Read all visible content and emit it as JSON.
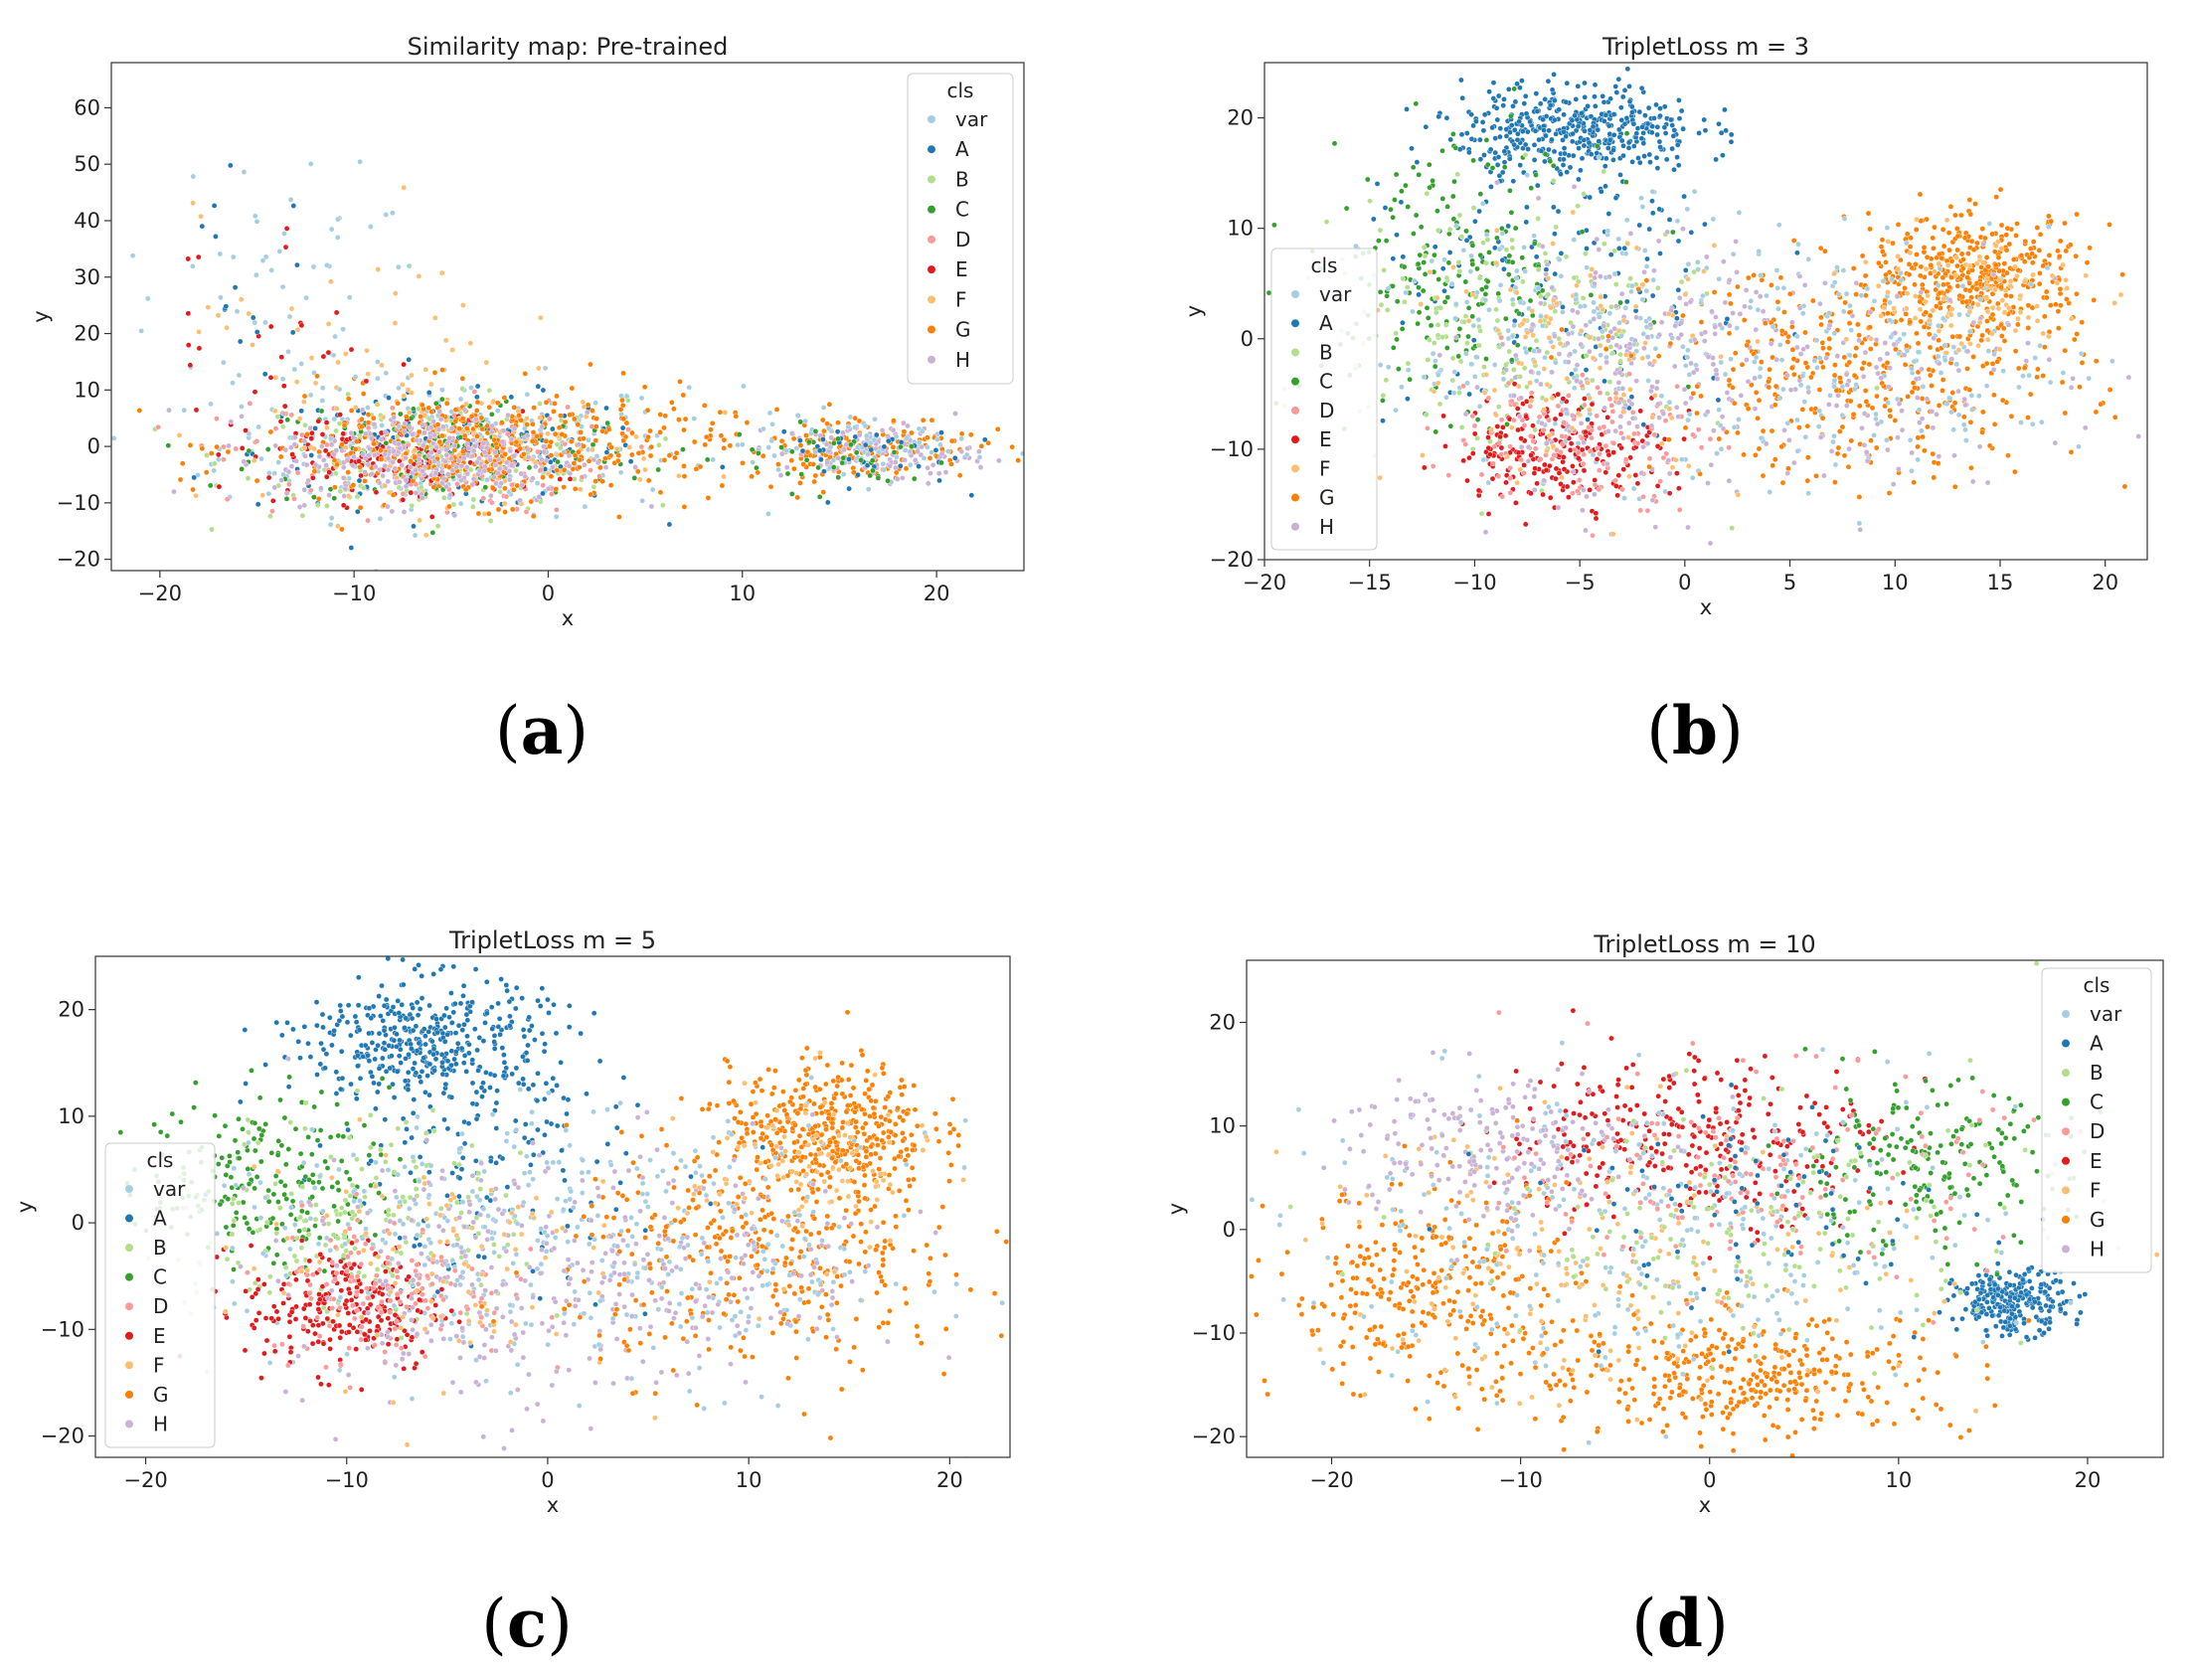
{
  "figure": {
    "captions": [
      "a",
      "b",
      "c",
      "d"
    ]
  },
  "class_colors": {
    "var": "#a6cee3",
    "A": "#1f78b4",
    "B": "#b2df8a",
    "C": "#33a02c",
    "D": "#fb9a99",
    "E": "#e31a1c",
    "F": "#fdbf6f",
    "G": "#ff7f00",
    "H": "#cab2d6"
  },
  "chart_data": [
    {
      "type": "scatter",
      "title": "Similarity map: Pre-trained",
      "xlabel": "x",
      "ylabel": "y",
      "xlim": [
        -22.5,
        24.5
      ],
      "ylim": [
        -22,
        68
      ],
      "xticks": [
        -20,
        -10,
        0,
        10,
        20
      ],
      "yticks": [
        -20,
        -10,
        0,
        10,
        20,
        30,
        40,
        50,
        60
      ],
      "xtick_labels": [
        "−20",
        "−10",
        "0",
        "10",
        "20"
      ],
      "ytick_labels": [
        "−20",
        "−10",
        "0",
        "10",
        "20",
        "30",
        "40",
        "50",
        "60"
      ],
      "legend": {
        "title": "cls",
        "placement": "upper-right",
        "entries": [
          "var",
          "A",
          "B",
          "C",
          "D",
          "E",
          "F",
          "G",
          "H"
        ]
      },
      "clusters": [
        {
          "cls": "var",
          "cx": -5,
          "cy": 0,
          "sx": 6,
          "sy": 6,
          "n": 260
        },
        {
          "cls": "A",
          "cx": -5,
          "cy": -1,
          "sx": 5,
          "sy": 5,
          "n": 160
        },
        {
          "cls": "B",
          "cx": -6,
          "cy": -2,
          "sx": 5,
          "sy": 5,
          "n": 160
        },
        {
          "cls": "C",
          "cx": -5,
          "cy": -1,
          "sx": 5,
          "sy": 5,
          "n": 130
        },
        {
          "cls": "D",
          "cx": -7,
          "cy": -2,
          "sx": 5,
          "sy": 5,
          "n": 140
        },
        {
          "cls": "E",
          "cx": -8,
          "cy": -2,
          "sx": 4,
          "sy": 4,
          "n": 120
        },
        {
          "cls": "F",
          "cx": -4,
          "cy": 0,
          "sx": 5,
          "sy": 5,
          "n": 150
        },
        {
          "cls": "G",
          "cx": -3,
          "cy": 0,
          "sx": 6,
          "sy": 5,
          "n": 420
        },
        {
          "cls": "H",
          "cx": -6,
          "cy": -2,
          "sx": 4,
          "sy": 4,
          "n": 280
        },
        {
          "cls": "G",
          "cx": 16,
          "cy": 0,
          "sx": 3,
          "sy": 3,
          "n": 160
        },
        {
          "cls": "H",
          "cx": 17,
          "cy": -1,
          "sx": 2.5,
          "sy": 2.5,
          "n": 120
        },
        {
          "cls": "var",
          "cx": 16,
          "cy": 0,
          "sx": 3,
          "sy": 3,
          "n": 80
        },
        {
          "cls": "A",
          "cx": 15,
          "cy": -1,
          "sx": 3,
          "sy": 3,
          "n": 40
        },
        {
          "cls": "C",
          "cx": 15,
          "cy": -2,
          "sx": 3,
          "sy": 3,
          "n": 40
        },
        {
          "cls": "var",
          "cx": -14,
          "cy": 25,
          "sx": 4,
          "sy": 13,
          "n": 60
        },
        {
          "cls": "F",
          "cx": -10,
          "cy": 22,
          "sx": 4,
          "sy": 10,
          "n": 40
        },
        {
          "cls": "E",
          "cx": -14,
          "cy": 20,
          "sx": 3,
          "sy": 12,
          "n": 25
        },
        {
          "cls": "A",
          "cx": -16,
          "cy": 28,
          "sx": 2,
          "sy": 10,
          "n": 15
        }
      ]
    },
    {
      "type": "scatter",
      "title": "TripletLoss m = 3",
      "xlabel": "x",
      "ylabel": "y",
      "xlim": [
        -20,
        22
      ],
      "ylim": [
        -20,
        25
      ],
      "xticks": [
        -20,
        -15,
        -10,
        -5,
        0,
        5,
        10,
        15,
        20
      ],
      "yticks": [
        -20,
        -10,
        0,
        10,
        20
      ],
      "xtick_labels": [
        "−20",
        "−15",
        "−10",
        "−5",
        "0",
        "5",
        "10",
        "15",
        "20"
      ],
      "ytick_labels": [
        "−20",
        "−10",
        "0",
        "10",
        "20"
      ],
      "legend": {
        "title": "cls",
        "placement": "center-left",
        "entries": [
          "var",
          "A",
          "B",
          "C",
          "D",
          "E",
          "F",
          "G",
          "H"
        ]
      },
      "clusters": [
        {
          "cls": "A",
          "cx": -5,
          "cy": 19,
          "sx": 2.8,
          "sy": 2,
          "n": 420
        },
        {
          "cls": "A",
          "cx": -6,
          "cy": 5,
          "sx": 5,
          "sy": 7,
          "n": 150
        },
        {
          "cls": "C",
          "cx": -11,
          "cy": 6,
          "sx": 3.5,
          "sy": 6,
          "n": 220
        },
        {
          "cls": "B",
          "cx": -8,
          "cy": 1,
          "sx": 4,
          "sy": 6,
          "n": 200
        },
        {
          "cls": "var",
          "cx": -5,
          "cy": 0,
          "sx": 5,
          "sy": 6,
          "n": 260
        },
        {
          "cls": "E",
          "cx": -6,
          "cy": -10,
          "sx": 2.5,
          "sy": 2.5,
          "n": 220
        },
        {
          "cls": "D",
          "cx": -5,
          "cy": -9,
          "sx": 3,
          "sy": 3,
          "n": 150
        },
        {
          "cls": "H",
          "cx": -3,
          "cy": -3,
          "sx": 4,
          "sy": 6,
          "n": 220
        },
        {
          "cls": "F",
          "cx": -5,
          "cy": -2,
          "sx": 4,
          "sy": 6,
          "n": 120
        },
        {
          "cls": "G",
          "cx": 14,
          "cy": 6,
          "sx": 2.5,
          "sy": 2.5,
          "n": 380
        },
        {
          "cls": "G",
          "cx": 9,
          "cy": -3,
          "sx": 5,
          "sy": 5,
          "n": 380
        },
        {
          "cls": "var",
          "cx": 10,
          "cy": -2,
          "sx": 5,
          "sy": 5,
          "n": 180
        },
        {
          "cls": "H",
          "cx": 8,
          "cy": -3,
          "sx": 5,
          "sy": 5,
          "n": 140
        },
        {
          "cls": "F",
          "cx": 13,
          "cy": 4,
          "sx": 3,
          "sy": 3,
          "n": 100
        }
      ]
    },
    {
      "type": "scatter",
      "title": "TripletLoss m = 5",
      "xlabel": "x",
      "ylabel": "y",
      "xlim": [
        -22.5,
        23
      ],
      "ylim": [
        -22,
        25
      ],
      "xticks": [
        -20,
        -10,
        0,
        10,
        20
      ],
      "yticks": [
        -20,
        -10,
        0,
        10,
        20
      ],
      "xtick_labels": [
        "−20",
        "−10",
        "0",
        "10",
        "20"
      ],
      "ytick_labels": [
        "−20",
        "−10",
        "0",
        "10",
        "20"
      ],
      "legend": {
        "title": "cls",
        "placement": "lower-left",
        "entries": [
          "var",
          "A",
          "B",
          "C",
          "D",
          "E",
          "F",
          "G",
          "H"
        ]
      },
      "clusters": [
        {
          "cls": "A",
          "cx": -6,
          "cy": 17,
          "sx": 3,
          "sy": 3,
          "n": 420
        },
        {
          "cls": "A",
          "cx": -3,
          "cy": 5,
          "sx": 5,
          "sy": 6,
          "n": 140
        },
        {
          "cls": "C",
          "cx": -14,
          "cy": 4,
          "sx": 3,
          "sy": 4,
          "n": 220
        },
        {
          "cls": "B",
          "cx": -9,
          "cy": 0,
          "sx": 4,
          "sy": 5,
          "n": 200
        },
        {
          "cls": "var",
          "cx": -5,
          "cy": -2,
          "sx": 6,
          "sy": 6,
          "n": 260
        },
        {
          "cls": "E",
          "cx": -10,
          "cy": -8,
          "sx": 2.5,
          "sy": 3,
          "n": 230
        },
        {
          "cls": "D",
          "cx": -8,
          "cy": -6,
          "sx": 3,
          "sy": 3.5,
          "n": 150
        },
        {
          "cls": "H",
          "cx": -3,
          "cy": -6,
          "sx": 5,
          "sy": 6,
          "n": 220
        },
        {
          "cls": "F",
          "cx": -6,
          "cy": -3,
          "sx": 5,
          "sy": 6,
          "n": 110
        },
        {
          "cls": "G",
          "cx": 14,
          "cy": 9,
          "sx": 2.5,
          "sy": 3,
          "n": 400
        },
        {
          "cls": "G",
          "cx": 11,
          "cy": -3,
          "sx": 5,
          "sy": 5.5,
          "n": 380
        },
        {
          "cls": "var",
          "cx": 9,
          "cy": -3,
          "sx": 5,
          "sy": 6,
          "n": 170
        },
        {
          "cls": "H",
          "cx": 8,
          "cy": -4,
          "sx": 5,
          "sy": 6,
          "n": 150
        },
        {
          "cls": "F",
          "cx": 13,
          "cy": 5,
          "sx": 3,
          "sy": 4,
          "n": 100
        }
      ]
    },
    {
      "type": "scatter",
      "title": "TripletLoss m = 10",
      "xlabel": "x",
      "ylabel": "y",
      "xlim": [
        -24.5,
        24
      ],
      "ylim": [
        -22,
        26
      ],
      "xticks": [
        -20,
        -10,
        0,
        10,
        20
      ],
      "yticks": [
        -20,
        -10,
        0,
        10,
        20
      ],
      "xtick_labels": [
        "−20",
        "−10",
        "0",
        "10",
        "20"
      ],
      "ytick_labels": [
        "−20",
        "−10",
        "0",
        "10",
        "20"
      ],
      "legend": {
        "title": "cls",
        "placement": "upper-right",
        "entries": [
          "var",
          "A",
          "B",
          "C",
          "D",
          "E",
          "F",
          "G",
          "H"
        ]
      },
      "clusters": [
        {
          "cls": "A",
          "cx": 16,
          "cy": -7,
          "sx": 1.5,
          "sy": 1.5,
          "n": 260
        },
        {
          "cls": "E",
          "cx": -1,
          "cy": 9,
          "sx": 5,
          "sy": 4,
          "n": 300
        },
        {
          "cls": "C",
          "cx": 11,
          "cy": 6,
          "sx": 4,
          "sy": 4,
          "n": 200
        },
        {
          "cls": "G",
          "cx": 2,
          "cy": -14,
          "sx": 6,
          "sy": 3,
          "n": 380
        },
        {
          "cls": "G",
          "cx": -15,
          "cy": -6,
          "sx": 4,
          "sy": 5,
          "n": 300
        },
        {
          "cls": "F",
          "cx": -5,
          "cy": -3,
          "sx": 8,
          "sy": 7,
          "n": 200
        },
        {
          "cls": "var",
          "cx": -3,
          "cy": 0,
          "sx": 10,
          "sy": 7,
          "n": 320
        },
        {
          "cls": "H",
          "cx": -12,
          "cy": 8,
          "sx": 4,
          "sy": 4,
          "n": 200
        },
        {
          "cls": "D",
          "cx": 3,
          "cy": 5,
          "sx": 6,
          "sy": 5,
          "n": 160
        },
        {
          "cls": "B",
          "cx": 2,
          "cy": 0,
          "sx": 8,
          "sy": 6,
          "n": 150
        },
        {
          "cls": "A",
          "cx": 2,
          "cy": 2,
          "sx": 6,
          "sy": 5,
          "n": 80
        }
      ]
    }
  ]
}
